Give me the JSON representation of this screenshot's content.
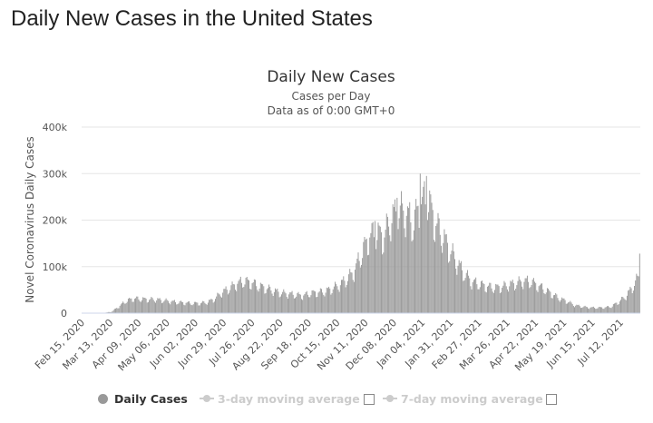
{
  "page": {
    "heading": "Daily New Cases in the United States"
  },
  "chart_data": {
    "type": "bar",
    "title": "Daily New Cases",
    "subtitle_lines": [
      "Cases per Day",
      "Data as of 0:00 GMT+0"
    ],
    "ylabel": "Novel Coronavirus Daily Cases",
    "xlabel": "",
    "ylim": [
      0,
      400000
    ],
    "y_ticks": [
      {
        "value": 0,
        "label": "0"
      },
      {
        "value": 100000,
        "label": "100k"
      },
      {
        "value": 200000,
        "label": "200k"
      },
      {
        "value": 300000,
        "label": "300k"
      },
      {
        "value": 400000,
        "label": "400k"
      }
    ],
    "x_tick_labels": [
      "Feb 15, 2020",
      "Mar 13, 2020",
      "Apr 09, 2020",
      "May 06, 2020",
      "Jun 02, 2020",
      "Jun 29, 2020",
      "Jul 26, 2020",
      "Aug 22, 2020",
      "Sep 18, 2020",
      "Oct 15, 2020",
      "Nov 11, 2020",
      "Dec 08, 2020",
      "Jan 04, 2021",
      "Jan 31, 2021",
      "Feb 27, 2021",
      "Mar 26, 2021",
      "Apr 22, 2021",
      "May 19, 2021",
      "Jun 15, 2021",
      "Jul 12, 2021"
    ],
    "x_tick_spacing_days": 27,
    "grid": true,
    "bar_color": "#999999",
    "first_date": "2020-02-15",
    "last_date": "2021-07-30",
    "weekly_cases": [
      [
        "2020-02-15",
        0
      ],
      [
        "2020-02-22",
        0
      ],
      [
        "2020-02-29",
        100
      ],
      [
        "2020-03-07",
        500
      ],
      [
        "2020-03-14",
        3000
      ],
      [
        "2020-03-21",
        14000
      ],
      [
        "2020-03-28",
        26000
      ],
      [
        "2020-04-04",
        31000
      ],
      [
        "2020-04-11",
        30000
      ],
      [
        "2020-04-18",
        29000
      ],
      [
        "2020-04-25",
        29000
      ],
      [
        "2020-05-02",
        27000
      ],
      [
        "2020-05-09",
        25000
      ],
      [
        "2020-05-16",
        23000
      ],
      [
        "2020-05-23",
        22000
      ],
      [
        "2020-05-30",
        21000
      ],
      [
        "2020-06-06",
        21000
      ],
      [
        "2020-06-13",
        23000
      ],
      [
        "2020-06-20",
        30000
      ],
      [
        "2020-06-27",
        44000
      ],
      [
        "2020-07-04",
        52000
      ],
      [
        "2020-07-11",
        62000
      ],
      [
        "2020-07-18",
        68000
      ],
      [
        "2020-07-25",
        65000
      ],
      [
        "2020-08-01",
        58000
      ],
      [
        "2020-08-08",
        53000
      ],
      [
        "2020-08-15",
        48000
      ],
      [
        "2020-08-22",
        43000
      ],
      [
        "2020-08-29",
        41000
      ],
      [
        "2020-09-05",
        39000
      ],
      [
        "2020-09-12",
        37000
      ],
      [
        "2020-09-19",
        42000
      ],
      [
        "2020-09-26",
        44000
      ],
      [
        "2020-10-03",
        46000
      ],
      [
        "2020-10-10",
        52000
      ],
      [
        "2020-10-17",
        60000
      ],
      [
        "2020-10-24",
        72000
      ],
      [
        "2020-10-31",
        88000
      ],
      [
        "2020-11-07",
        125000
      ],
      [
        "2020-11-14",
        160000
      ],
      [
        "2020-11-21",
        172000
      ],
      [
        "2020-11-28",
        160000
      ],
      [
        "2020-12-05",
        200000
      ],
      [
        "2020-12-12",
        216000
      ],
      [
        "2020-12-19",
        215000
      ],
      [
        "2020-12-26",
        188000
      ],
      [
        "2021-01-02",
        230000
      ],
      [
        "2021-01-09",
        245000
      ],
      [
        "2021-01-16",
        192000
      ],
      [
        "2021-01-23",
        165000
      ],
      [
        "2021-01-30",
        135000
      ],
      [
        "2021-02-06",
        108000
      ],
      [
        "2021-02-13",
        84000
      ],
      [
        "2021-02-20",
        67000
      ],
      [
        "2021-02-27",
        62000
      ],
      [
        "2021-03-06",
        57000
      ],
      [
        "2021-03-13",
        54000
      ],
      [
        "2021-03-20",
        55000
      ],
      [
        "2021-03-27",
        60000
      ],
      [
        "2021-04-03",
        63000
      ],
      [
        "2021-04-10",
        68000
      ],
      [
        "2021-04-17",
        67000
      ],
      [
        "2021-04-24",
        59000
      ],
      [
        "2021-05-01",
        50000
      ],
      [
        "2021-05-08",
        40000
      ],
      [
        "2021-05-15",
        31000
      ],
      [
        "2021-05-22",
        25000
      ],
      [
        "2021-05-29",
        17000
      ],
      [
        "2021-06-05",
        14000
      ],
      [
        "2021-06-12",
        12000
      ],
      [
        "2021-06-19",
        11500
      ],
      [
        "2021-06-26",
        12000
      ],
      [
        "2021-07-03",
        14000
      ],
      [
        "2021-07-10",
        24000
      ],
      [
        "2021-07-17",
        36000
      ],
      [
        "2021-07-24",
        58000
      ],
      [
        "2021-07-31",
        85000
      ]
    ],
    "labeled_peaks": [
      [
        "2021-01-02",
        300000
      ],
      [
        "2021-01-08",
        295000
      ],
      [
        "2020-12-11",
        248000
      ],
      [
        "2020-11-20",
        198000
      ],
      [
        "2021-07-30",
        128000
      ]
    ],
    "legend_position": "bottom-center"
  },
  "legend": {
    "items": [
      {
        "label": "Daily Cases",
        "color": "#999999",
        "enabled": true
      },
      {
        "label": "3-day moving average",
        "color": "#cccccc",
        "enabled": false
      },
      {
        "label": "7-day moving average",
        "color": "#cccccc",
        "enabled": false
      }
    ]
  }
}
